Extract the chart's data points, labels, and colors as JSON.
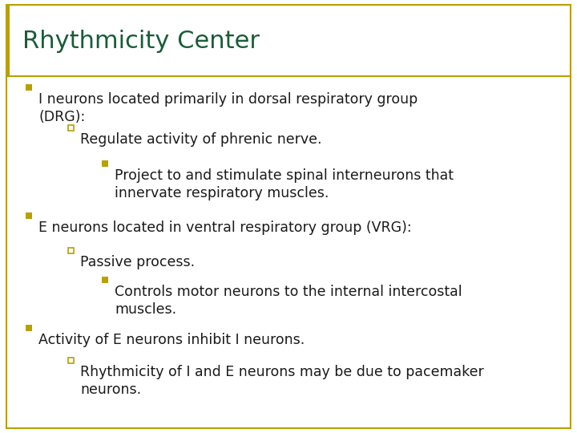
{
  "title": "Rhythmicity Center",
  "title_color": "#1a5c38",
  "title_fontsize": 22,
  "bg_color": "#ffffff",
  "border_color": "#b8a000",
  "bullet_color": "#b8a000",
  "text_color": "#1a1a1a",
  "figwidth": 7.2,
  "figheight": 5.4,
  "dpi": 100,
  "content": [
    {
      "level": 0,
      "bullet": "square_filled",
      "text": "I neurons located primarily in dorsal respiratory group\n(DRG):"
    },
    {
      "level": 1,
      "bullet": "square_open",
      "text": "Regulate activity of phrenic nerve."
    },
    {
      "level": 2,
      "bullet": "square_filled",
      "text": "Project to and stimulate spinal interneurons that\ninnervate respiratory muscles."
    },
    {
      "level": 0,
      "bullet": "square_filled",
      "text": "E neurons located in ventral respiratory group (VRG):"
    },
    {
      "level": 1,
      "bullet": "square_open",
      "text": "Passive process."
    },
    {
      "level": 2,
      "bullet": "square_filled",
      "text": "Controls motor neurons to the internal intercostal\nmuscles."
    },
    {
      "level": 0,
      "bullet": "square_filled",
      "text": "Activity of E neurons inhibit I neurons."
    },
    {
      "level": 1,
      "bullet": "square_open",
      "text": "Rhythmicity of I and E neurons may be due to pacemaker\nneurons."
    }
  ]
}
